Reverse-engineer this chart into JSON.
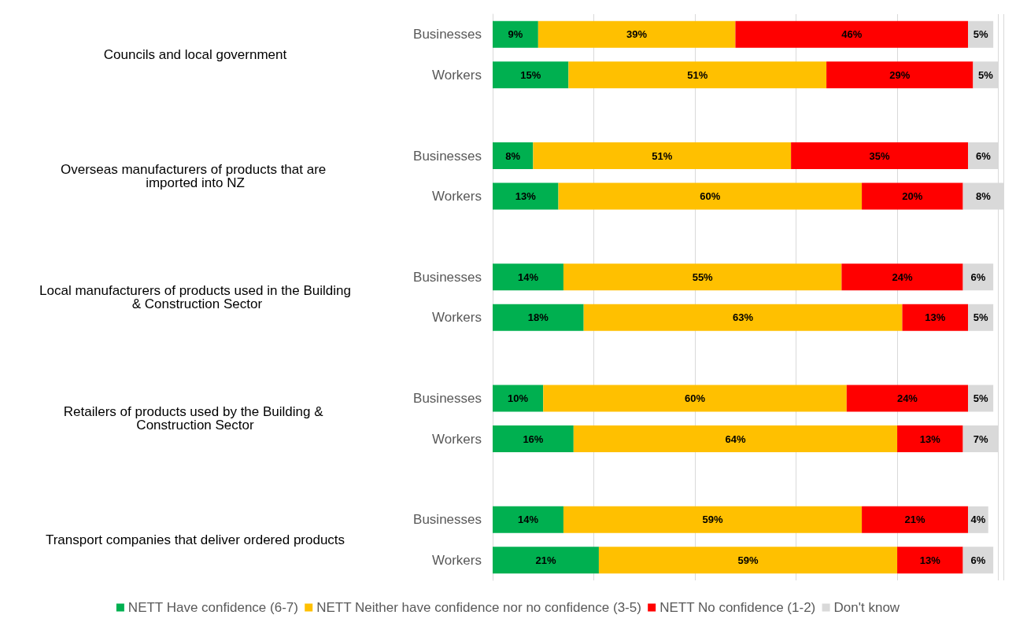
{
  "chart_data": {
    "type": "bar",
    "orientation": "horizontal",
    "stacked": true,
    "categories": [
      "Businesses",
      "Workers",
      null,
      "Businesses",
      "Workers",
      null,
      "Businesses",
      "Workers",
      null,
      "Businesses",
      "Workers",
      null,
      "Businesses",
      "Workers"
    ],
    "series": [
      {
        "name": "NETT Have confidence (6-7)",
        "color": "#00b050",
        "values": [
          9,
          15,
          null,
          8,
          13,
          null,
          14,
          18,
          null,
          10,
          16,
          null,
          14,
          21
        ],
        "value_labels": [
          "9%",
          "15%",
          null,
          "8%",
          "13%",
          null,
          "14%",
          "18%",
          null,
          "10%",
          "16%",
          null,
          "14%",
          "21%"
        ]
      },
      {
        "name": "NETT Neither have confidence nor no confidence (3-5)",
        "color": "#ffc000",
        "values": [
          39,
          51,
          null,
          51,
          60,
          null,
          55,
          63,
          null,
          60,
          64,
          null,
          59,
          59
        ],
        "value_labels": [
          "39%",
          "51%",
          null,
          "51%",
          "60%",
          null,
          "55%",
          "63%",
          null,
          "60%",
          "64%",
          null,
          "59%",
          "59%"
        ]
      },
      {
        "name": "NETT No confidence (1-2)",
        "color": "#ff0000",
        "values": [
          46,
          29,
          null,
          35,
          20,
          null,
          24,
          13,
          null,
          24,
          13,
          null,
          21,
          13
        ],
        "value_labels": [
          "46%",
          "29%",
          null,
          "35%",
          "20%",
          null,
          "24%",
          "13%",
          null,
          "24%",
          "13%",
          null,
          "21%",
          "13%"
        ]
      },
      {
        "name": "Don't know",
        "color": "#d9d9d9",
        "values": [
          5,
          5,
          null,
          6,
          8,
          null,
          6,
          5,
          null,
          5,
          7,
          null,
          4,
          6
        ],
        "value_labels": [
          "5%",
          "5%",
          null,
          "6%",
          "8%",
          null,
          "6%",
          "5%",
          null,
          "5%",
          "7%",
          null,
          "4%",
          "6%"
        ]
      }
    ],
    "annotations": [
      "Councils and local government",
      "Overseas manufacturers of products that are imported into NZ",
      "Local manufacturers of products used in the Building & Construction Sector",
      "Retailers of products used by the Building & Construction Sector",
      "Transport companies that deliver ordered products"
    ],
    "grid": "x",
    "legend": "bottom",
    "tick_labels": "y"
  }
}
